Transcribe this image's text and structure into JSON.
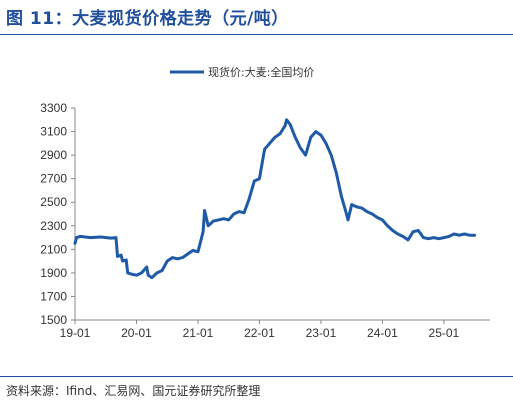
{
  "header": {
    "title": "图 11：大麦现货价格走势（元/吨）"
  },
  "footer": {
    "source": "资料来源：Ifind、汇易网、国元证券研究所整理"
  },
  "colors": {
    "accent": "#1f4e9c",
    "series": "#1f5aa6",
    "axis": "#888888"
  },
  "chart_data": {
    "type": "line",
    "title": "",
    "xlabel": "",
    "ylabel": "",
    "ylim": [
      1500,
      3300
    ],
    "yticks": [
      1500,
      1700,
      1900,
      2100,
      2300,
      2500,
      2700,
      2900,
      3100,
      3300
    ],
    "xticks": [
      "19-01",
      "20-01",
      "21-01",
      "22-01",
      "23-01",
      "24-01",
      "25-01"
    ],
    "grid": false,
    "legend": "top-center",
    "series": [
      {
        "name": "现货价:大麦:全国均价",
        "points": [
          [
            "2019-01",
            2150
          ],
          [
            "2019-01",
            2200
          ],
          [
            "2019-02",
            2210
          ],
          [
            "2019-04",
            2200
          ],
          [
            "2019-06",
            2205
          ],
          [
            "2019-08",
            2195
          ],
          [
            "2019-09",
            2200
          ],
          [
            "2019-09",
            2040
          ],
          [
            "2019-10",
            2050
          ],
          [
            "2019-10",
            2000
          ],
          [
            "2019-11",
            2010
          ],
          [
            "2019-11",
            1900
          ],
          [
            "2019-12",
            1890
          ],
          [
            "2020-01",
            1880
          ],
          [
            "2020-02",
            1900
          ],
          [
            "2020-03",
            1950
          ],
          [
            "2020-03",
            1880
          ],
          [
            "2020-04",
            1860
          ],
          [
            "2020-05",
            1900
          ],
          [
            "2020-06",
            1920
          ],
          [
            "2020-07",
            2000
          ],
          [
            "2020-08",
            2030
          ],
          [
            "2020-09",
            2020
          ],
          [
            "2020-10",
            2030
          ],
          [
            "2020-11",
            2060
          ],
          [
            "2020-12",
            2090
          ],
          [
            "2021-01",
            2080
          ],
          [
            "2021-02",
            2250
          ],
          [
            "2021-02",
            2430
          ],
          [
            "2021-03",
            2300
          ],
          [
            "2021-04",
            2340
          ],
          [
            "2021-05",
            2350
          ],
          [
            "2021-06",
            2360
          ],
          [
            "2021-07",
            2350
          ],
          [
            "2021-08",
            2400
          ],
          [
            "2021-09",
            2420
          ],
          [
            "2021-10",
            2410
          ],
          [
            "2021-11",
            2530
          ],
          [
            "2021-12",
            2680
          ],
          [
            "2022-01",
            2700
          ],
          [
            "2022-02",
            2950
          ],
          [
            "2022-03",
            3000
          ],
          [
            "2022-04",
            3050
          ],
          [
            "2022-05",
            3080
          ],
          [
            "2022-06",
            3150
          ],
          [
            "2022-06",
            3200
          ],
          [
            "2022-07",
            3160
          ],
          [
            "2022-08",
            3050
          ],
          [
            "2022-09",
            2960
          ],
          [
            "2022-10",
            2900
          ],
          [
            "2022-11",
            3050
          ],
          [
            "2022-12",
            3100
          ],
          [
            "2023-01",
            3070
          ],
          [
            "2023-02",
            3000
          ],
          [
            "2023-03",
            2900
          ],
          [
            "2023-04",
            2750
          ],
          [
            "2023-05",
            2550
          ],
          [
            "2023-06",
            2400
          ],
          [
            "2023-06",
            2350
          ],
          [
            "2023-07",
            2480
          ],
          [
            "2023-08",
            2460
          ],
          [
            "2023-09",
            2450
          ],
          [
            "2023-10",
            2420
          ],
          [
            "2023-11",
            2400
          ],
          [
            "2023-12",
            2370
          ],
          [
            "2024-01",
            2350
          ],
          [
            "2024-02",
            2300
          ],
          [
            "2024-03",
            2260
          ],
          [
            "2024-04",
            2230
          ],
          [
            "2024-05",
            2210
          ],
          [
            "2024-06",
            2180
          ],
          [
            "2024-07",
            2250
          ],
          [
            "2024-08",
            2260
          ],
          [
            "2024-09",
            2200
          ],
          [
            "2024-10",
            2190
          ],
          [
            "2024-11",
            2200
          ],
          [
            "2024-12",
            2190
          ],
          [
            "2025-01",
            2200
          ],
          [
            "2025-02",
            2210
          ],
          [
            "2025-03",
            2230
          ],
          [
            "2025-04",
            2220
          ],
          [
            "2025-05",
            2230
          ],
          [
            "2025-06",
            2220
          ],
          [
            "2025-07",
            2220
          ]
        ]
      }
    ]
  }
}
